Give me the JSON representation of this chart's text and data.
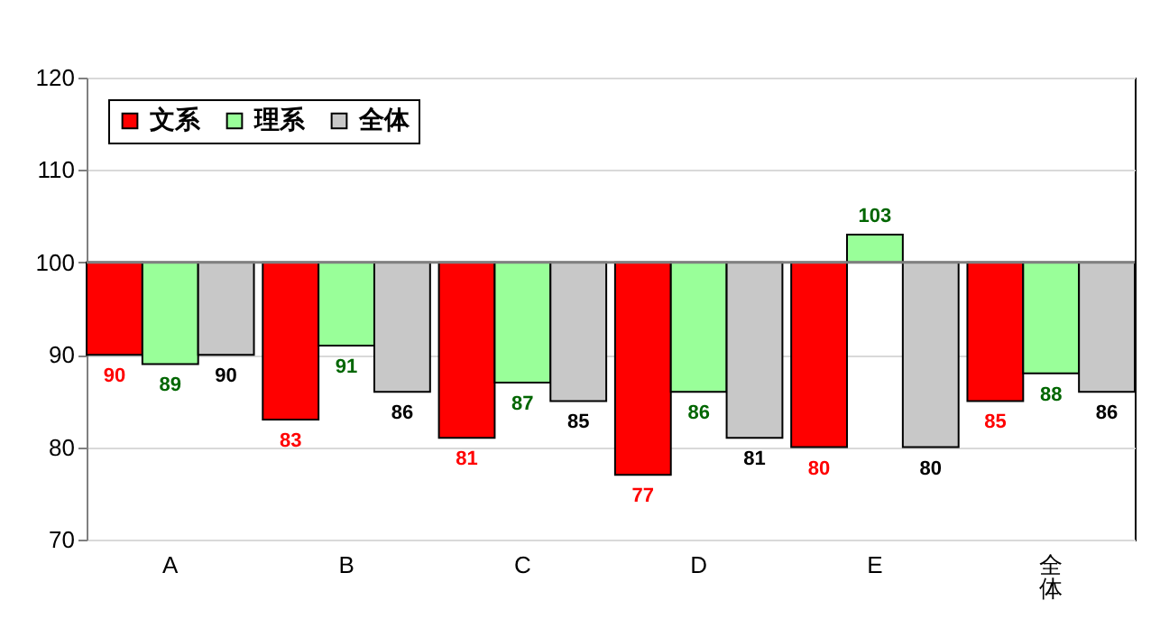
{
  "chart_data": {
    "type": "bar",
    "categories": [
      "A",
      "B",
      "C",
      "D",
      "E",
      "全体"
    ],
    "series": [
      {
        "name": "文系",
        "color": "#ff0000",
        "base": [
          100,
          100,
          100,
          100,
          100,
          100
        ],
        "values": [
          -10,
          -17,
          -19,
          -23,
          -20,
          -15
        ],
        "value_labels": [
          "90",
          "83",
          "81",
          "77",
          "80",
          "85"
        ]
      },
      {
        "name": "理系",
        "color": "#99ff99",
        "base": [
          100,
          100,
          100,
          100,
          100,
          100
        ],
        "values": [
          -11,
          -9,
          -13,
          -14,
          3,
          -12
        ],
        "value_labels": [
          "89",
          "91",
          "87",
          "86",
          "103",
          "88"
        ]
      },
      {
        "name": "全体",
        "color": "#c8c8c8",
        "base": [
          100,
          100,
          100,
          100,
          100,
          100
        ],
        "values": [
          -10,
          -14,
          -15,
          -19,
          -20,
          -14
        ],
        "value_labels": [
          "90",
          "86",
          "85",
          "81",
          "80",
          "86"
        ]
      }
    ],
    "ylim": [
      70,
      120
    ],
    "yticks": [
      70,
      80,
      90,
      100,
      110,
      120
    ],
    "grid": "y",
    "legend": "top left",
    "ref_lines": [
      {
        "axis": "y",
        "value": 100,
        "color": "#808080"
      }
    ]
  }
}
